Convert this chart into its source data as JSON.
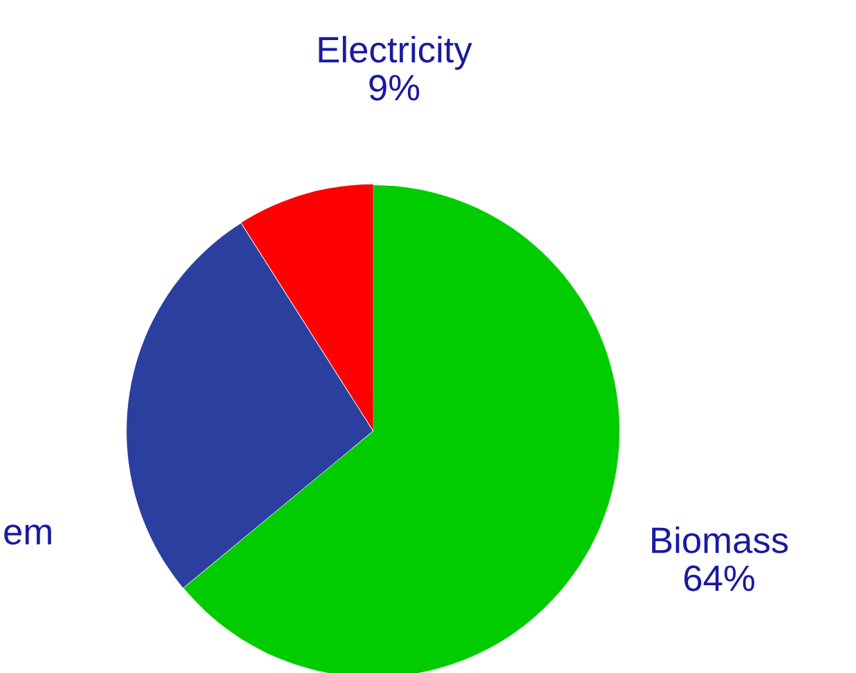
{
  "chart_data": {
    "type": "pie",
    "categories": [
      "Biomass",
      "em",
      "Electricity"
    ],
    "values": [
      64,
      27,
      9
    ],
    "colors": [
      "#00cc00",
      "#2b3f9e",
      "#ff0000"
    ],
    "value_labels": [
      "64%",
      null,
      "9%"
    ]
  }
}
